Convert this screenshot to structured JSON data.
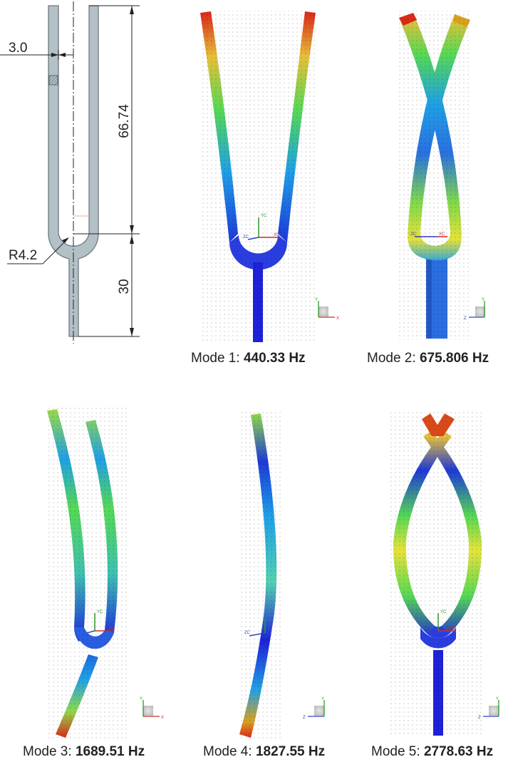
{
  "drawing": {
    "width_label": "3.0",
    "prong_length_label": "66.74",
    "radius_label": "R4.2",
    "stem_length_label": "30"
  },
  "modes": [
    {
      "prefix": "Mode 1: ",
      "freq": "440.33 Hz"
    },
    {
      "prefix": "Mode 2: ",
      "freq": "675.806 Hz"
    },
    {
      "prefix": "Mode 3: ",
      "freq": "1689.51 Hz"
    },
    {
      "prefix": "Mode 4: ",
      "freq": "1827.55 Hz"
    },
    {
      "prefix": "Mode 5: ",
      "freq": "2778.63 Hz"
    }
  ],
  "triad_labels": {
    "yc": "YC",
    "zc": "ZC",
    "xc": "XC",
    "y": "Y",
    "z": "Z",
    "x": "X"
  },
  "colors": {
    "low": "#1e22d8",
    "mid_low": "#1fa0e6",
    "mid": "#55d855",
    "mid_high": "#e6e23a",
    "high": "#d92a1a",
    "drawing_fill": "#b3c0c6"
  }
}
